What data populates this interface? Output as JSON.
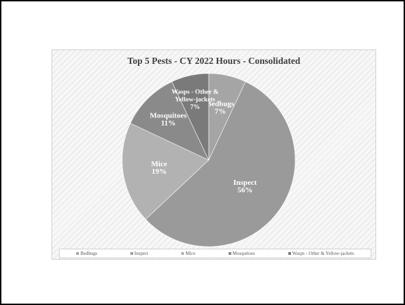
{
  "chart_data": {
    "type": "pie",
    "title": "Top 5  Pests - CY 2022 Hours - Consolidated",
    "slices": [
      {
        "name": "Bedbugs",
        "percent": 7,
        "label_lines": [
          "Bedbugs",
          "7%"
        ],
        "color": "#a5a5a5"
      },
      {
        "name": "Inspect",
        "percent": 56,
        "label_lines": [
          "Inspect",
          "56%"
        ],
        "color": "#9a9a9a"
      },
      {
        "name": "Mice",
        "percent": 19,
        "label_lines": [
          "Mice",
          "19%"
        ],
        "color": "#b2b2b2"
      },
      {
        "name": "Mosquitoes",
        "percent": 11,
        "label_lines": [
          "Mosquitoes",
          "11%"
        ],
        "color": "#8a8a8a"
      },
      {
        "name": "Wasps - Other & Yellow-jackets",
        "percent": 7,
        "label_lines": [
          "Wasps - Other &",
          "Yellow-jackets",
          "7%"
        ],
        "color": "#7a7a7a"
      }
    ],
    "legend": {
      "placement": "bottom",
      "entries": [
        "Bedbugs",
        "Inspect",
        "Mice",
        "Mosquitoes",
        "Wasps - Other & Yellow-jackets"
      ]
    }
  }
}
